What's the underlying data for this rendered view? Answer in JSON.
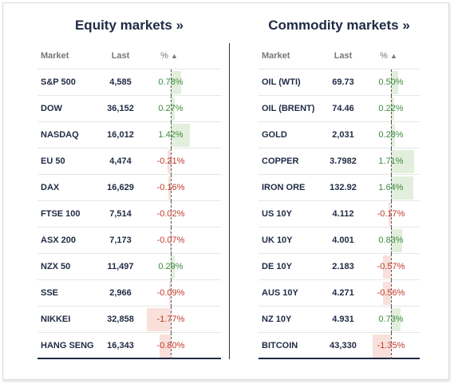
{
  "equity": {
    "title": "Equity markets »",
    "headers": {
      "market": "Market",
      "last": "Last",
      "pct": "%",
      "sort_icon": "▲"
    },
    "rows": [
      {
        "market": "S&P 500",
        "last": "4,585",
        "pct": "0.78%",
        "value": 0.78
      },
      {
        "market": "DOW",
        "last": "36,152",
        "pct": "0.27%",
        "value": 0.27
      },
      {
        "market": "NASDAQ",
        "last": "16,012",
        "pct": "1.42%",
        "value": 1.42
      },
      {
        "market": "EU 50",
        "last": "4,474",
        "pct": "-0.21%",
        "value": -0.21
      },
      {
        "market": "DAX",
        "last": "16,629",
        "pct": "-0.16%",
        "value": -0.16
      },
      {
        "market": "FTSE 100",
        "last": "7,514",
        "pct": "-0.02%",
        "value": -0.02
      },
      {
        "market": "ASX 200",
        "last": "7,173",
        "pct": "-0.07%",
        "value": -0.07
      },
      {
        "market": "NZX 50",
        "last": "11,497",
        "pct": "0.29%",
        "value": 0.29
      },
      {
        "market": "SSE",
        "last": "2,966",
        "pct": "-0.09%",
        "value": -0.09
      },
      {
        "market": "NIKKEI",
        "last": "32,858",
        "pct": "-1.77%",
        "value": -1.77
      },
      {
        "market": "HANG SENG",
        "last": "16,343",
        "pct": "-0.80%",
        "value": -0.8
      }
    ]
  },
  "commodity": {
    "title": "Commodity markets »",
    "headers": {
      "market": "Market",
      "last": "Last",
      "pct": "%",
      "sort_icon": "▲"
    },
    "rows": [
      {
        "market": "OIL (WTI)",
        "last": "69.73",
        "pct": "0.50%",
        "value": 0.5
      },
      {
        "market": "OIL (BRENT)",
        "last": "74.46",
        "pct": "0.22%",
        "value": 0.22
      },
      {
        "market": "GOLD",
        "last": "2,031",
        "pct": "0.28%",
        "value": 0.28
      },
      {
        "market": "COPPER",
        "last": "3.7982",
        "pct": "1.71%",
        "value": 1.71
      },
      {
        "market": "IRON ORE",
        "last": "132.92",
        "pct": "1.64%",
        "value": 1.64
      },
      {
        "market": "US 10Y",
        "last": "4.112",
        "pct": "-0.17%",
        "value": -0.17
      },
      {
        "market": "UK 10Y",
        "last": "4.001",
        "pct": "0.83%",
        "value": 0.83
      },
      {
        "market": "DE 10Y",
        "last": "2.183",
        "pct": "-0.57%",
        "value": -0.57
      },
      {
        "market": "AUS 10Y",
        "last": "4.271",
        "pct": "-0.56%",
        "value": -0.56
      },
      {
        "market": "NZ 10Y",
        "last": "4.931",
        "pct": "0.73%",
        "value": 0.73
      },
      {
        "market": "BITCOIN",
        "last": "43,330",
        "pct": "-1.35%",
        "value": -1.35
      }
    ]
  },
  "colors": {
    "positive": "#3b8a3b",
    "negative": "#c0392b",
    "positive_bar": "#e2efdc",
    "negative_bar": "#f9e0da",
    "title": "#1f2a44"
  }
}
